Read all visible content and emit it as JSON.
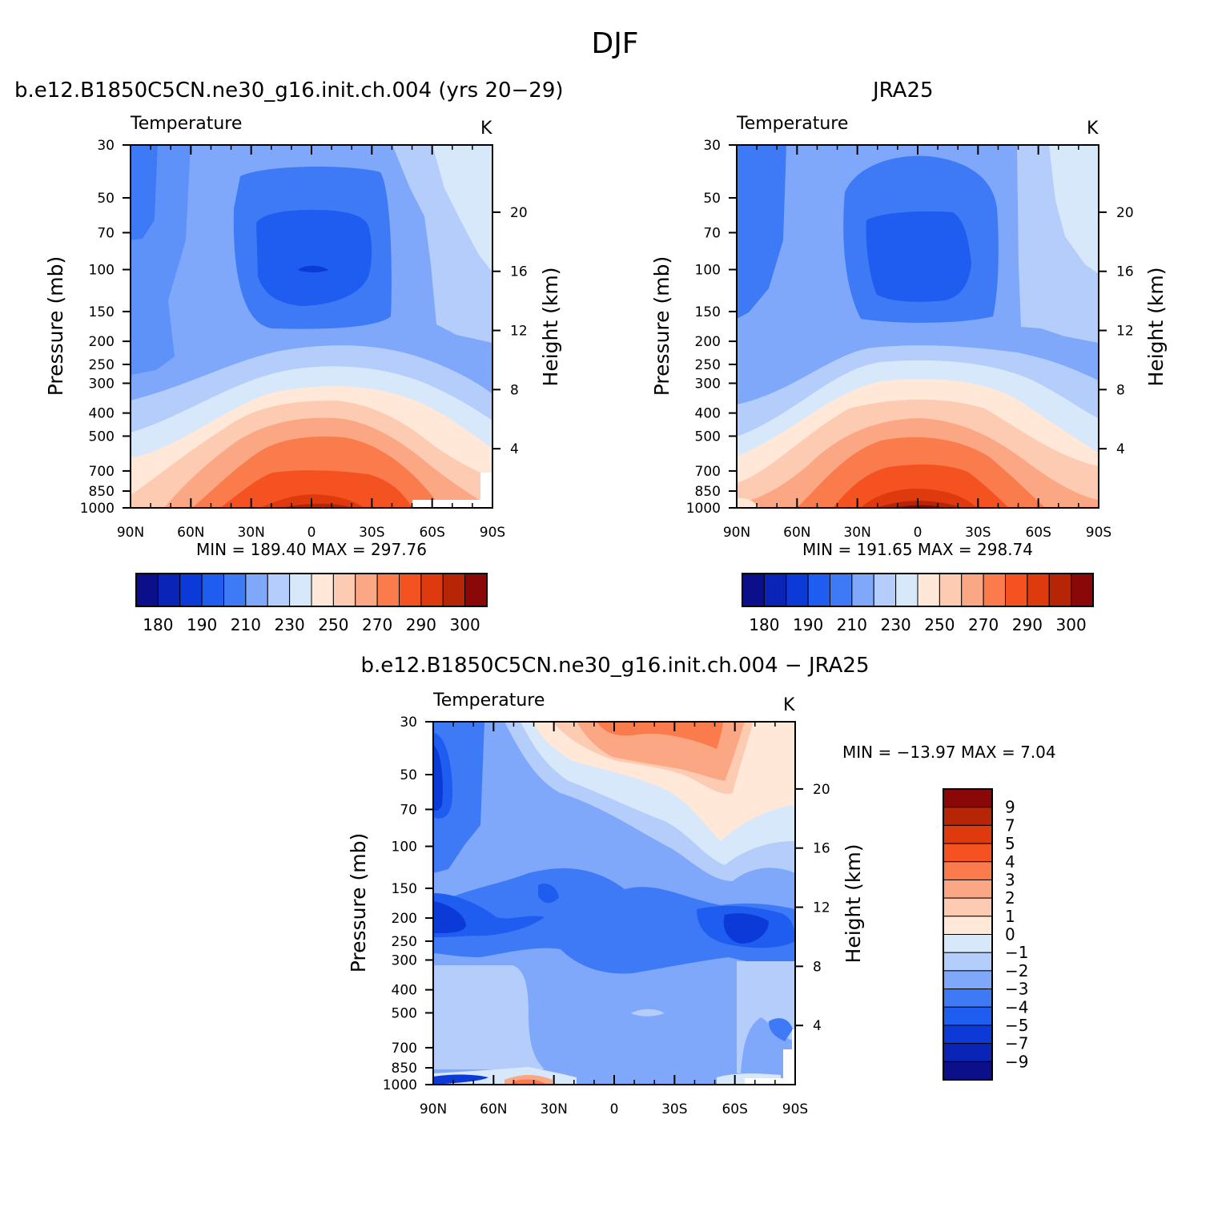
{
  "figure": {
    "title": "DJF",
    "panel_titles": [
      "b.e12.B1850C5CN.ne30_g16.init.ch.004 (yrs 20−29)",
      "JRA25",
      "b.e12.B1850C5CN.ne30_g16.init.ch.004 − JRA25"
    ]
  },
  "panels": [
    {
      "variable_label": "Temperature",
      "unit_label": "K",
      "left_axis_title": "Pressure (mb)",
      "right_axis_title": "Height (km)",
      "stats_text": "MIN = 189.40   MAX = 297.76"
    },
    {
      "variable_label": "Temperature",
      "unit_label": "K",
      "left_axis_title": "Pressure (mb)",
      "right_axis_title": "Height (km)",
      "stats_text": "MIN = 191.65   MAX = 298.74"
    },
    {
      "variable_label": "Temperature",
      "unit_label": "K",
      "left_axis_title": "Pressure (mb)",
      "right_axis_title": "Height (km)",
      "stats_text": "MIN = −13.97   MAX =    7.04"
    }
  ],
  "chart_data": [
    {
      "type": "heatmap",
      "name": "model",
      "x_ticks": [
        "90N",
        "60N",
        "30N",
        "0",
        "30S",
        "60S",
        "90S"
      ],
      "x_values": [
        90,
        60,
        30,
        0,
        -30,
        -60,
        -90
      ],
      "y_ticks": [
        "30",
        "50",
        "70",
        "100",
        "150",
        "200",
        "250",
        "300",
        "400",
        "500",
        "700",
        "850",
        "1000"
      ],
      "y_values": [
        30,
        50,
        70,
        100,
        150,
        200,
        250,
        300,
        400,
        500,
        700,
        850,
        1000
      ],
      "y_scale": "log",
      "right_ticks": [
        "20",
        "16",
        "12",
        "8",
        "4"
      ],
      "right_values_km": [
        20,
        16,
        12,
        8,
        4
      ],
      "colorbar_labels": [
        "180",
        "190",
        "210",
        "230",
        "250",
        "270",
        "290",
        "300"
      ],
      "min": 189.4,
      "max": 297.76,
      "unit": "K"
    },
    {
      "type": "heatmap",
      "name": "obs",
      "x_ticks": [
        "90N",
        "60N",
        "30N",
        "0",
        "30S",
        "60S",
        "90S"
      ],
      "x_values": [
        90,
        60,
        30,
        0,
        -30,
        -60,
        -90
      ],
      "y_ticks": [
        "30",
        "50",
        "70",
        "100",
        "150",
        "200",
        "250",
        "300",
        "400",
        "500",
        "700",
        "850",
        "1000"
      ],
      "y_values": [
        30,
        50,
        70,
        100,
        150,
        200,
        250,
        300,
        400,
        500,
        700,
        850,
        1000
      ],
      "y_scale": "log",
      "right_ticks": [
        "20",
        "16",
        "12",
        "8",
        "4"
      ],
      "right_values_km": [
        20,
        16,
        12,
        8,
        4
      ],
      "colorbar_labels": [
        "180",
        "190",
        "210",
        "230",
        "250",
        "270",
        "290",
        "300"
      ],
      "min": 191.65,
      "max": 298.74,
      "unit": "K"
    },
    {
      "type": "heatmap",
      "name": "difference",
      "x_ticks": [
        "90N",
        "60N",
        "30N",
        "0",
        "30S",
        "60S",
        "90S"
      ],
      "x_values": [
        90,
        60,
        30,
        0,
        -30,
        -60,
        -90
      ],
      "y_ticks": [
        "30",
        "50",
        "70",
        "100",
        "150",
        "200",
        "250",
        "300",
        "400",
        "500",
        "700",
        "850",
        "1000"
      ],
      "y_values": [
        30,
        50,
        70,
        100,
        150,
        200,
        250,
        300,
        400,
        500,
        700,
        850,
        1000
      ],
      "y_scale": "log",
      "right_ticks": [
        "20",
        "16",
        "12",
        "8",
        "4"
      ],
      "right_values_km": [
        20,
        16,
        12,
        8,
        4
      ],
      "colorbar_labels": [
        "9",
        "7",
        "5",
        "4",
        "3",
        "2",
        "1",
        "0",
        "−1",
        "−2",
        "−3",
        "−4",
        "−5",
        "−7",
        "−9"
      ],
      "min": -13.97,
      "max": 7.04,
      "unit": "K"
    }
  ],
  "colors": {
    "temp_colorbar": [
      "#0b0f8a",
      "#0a24b8",
      "#0b3ad9",
      "#1f5cf0",
      "#3e7af5",
      "#7fa8fb",
      "#b4cdfb",
      "#d8e8fb",
      "#ffe8d8",
      "#fdcbb2",
      "#fba784",
      "#fa7c4d",
      "#f45221",
      "#de3a0e",
      "#b62606",
      "#8a0908"
    ],
    "diff_colorbar_top_to_bottom": [
      "#8a0908",
      "#b62606",
      "#de3a0e",
      "#f45221",
      "#fa7c4d",
      "#fba784",
      "#fdcbb2",
      "#ffe8d8",
      "#d8e8fb",
      "#b4cdfb",
      "#7fa8fb",
      "#3e7af5",
      "#1f5cf0",
      "#0b3ad9",
      "#0a24b8",
      "#0b0f8a"
    ]
  }
}
